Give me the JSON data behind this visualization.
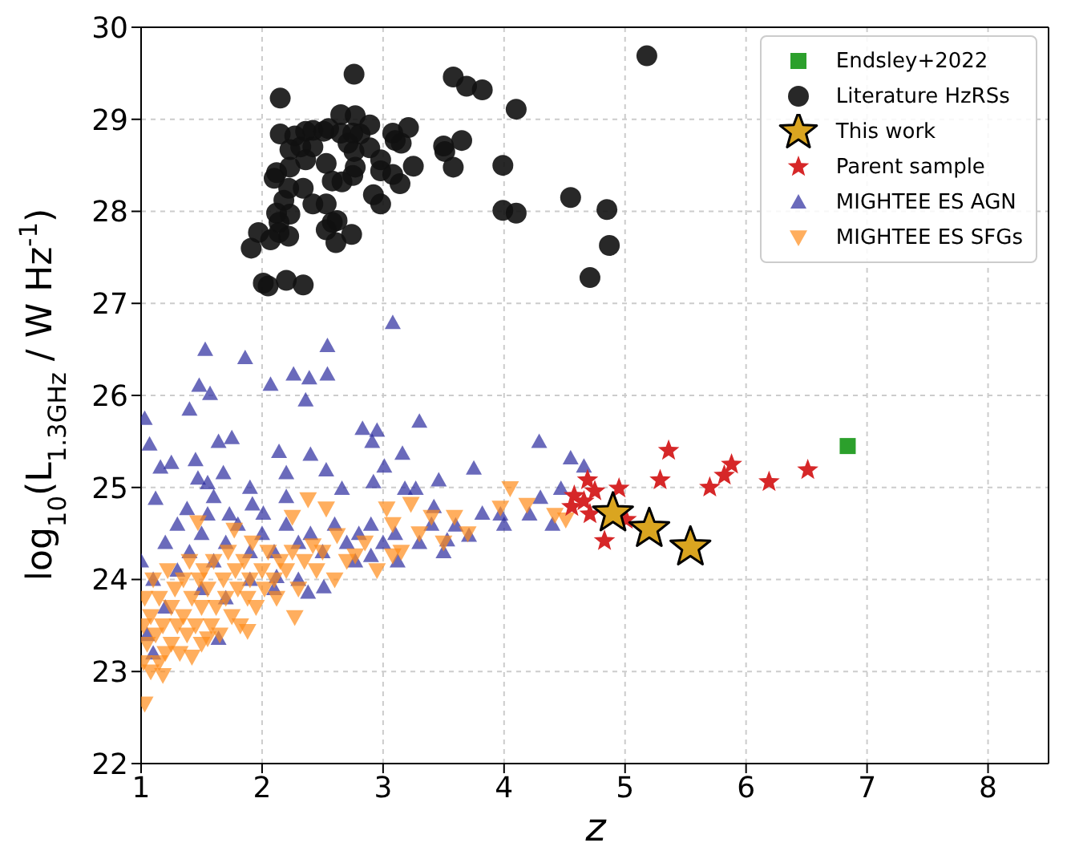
{
  "chart_data": {
    "type": "scatter",
    "xlabel": "z",
    "ylabel": "log$_{10}$(L$_{1.3GHz}$ / W Hz$^{-1}$)",
    "xlim": [
      1,
      8.5
    ],
    "xticks": [
      1,
      2,
      3,
      4,
      5,
      6,
      7,
      8
    ],
    "ylim": [
      22,
      30
    ],
    "yticks": [
      22,
      23,
      24,
      25,
      26,
      27,
      28,
      29,
      30
    ],
    "grid": true,
    "legend": "top right",
    "series": [
      {
        "name": "Endsley+2022",
        "color": "#2ca02c",
        "marker": "square",
        "x": [
          6.84
        ],
        "values": [
          25.45
        ]
      },
      {
        "name": "Literature HzRSs",
        "color": "#111111",
        "marker": "circle",
        "x": [
          2.76,
          2.15,
          5.18,
          3.58,
          3.69,
          3.82,
          4.1,
          2.65,
          2.77,
          2.15,
          2.27,
          2.36,
          2.42,
          2.51,
          2.55,
          2.65,
          2.75,
          2.81,
          2.89,
          3.08,
          3.21,
          3.1,
          3.15,
          2.23,
          2.32,
          2.42,
          2.36,
          2.71,
          2.76,
          2.89,
          2.53,
          2.23,
          2.12,
          2.1,
          2.77,
          2.75,
          2.66,
          2.58,
          2.98,
          2.98,
          3.08,
          3.14,
          3.25,
          3.5,
          3.51,
          3.65,
          3.58,
          3.99,
          2.22,
          2.34,
          2.18,
          2.42,
          2.53,
          2.92,
          2.98,
          2.12,
          2.23,
          2.14,
          2.62,
          2.58,
          2.53,
          2.14,
          2.22,
          2.07,
          1.97,
          1.91,
          2.74,
          2.61,
          3.99,
          4.1,
          4.55,
          4.85,
          4.87,
          4.71,
          2.01,
          2.05,
          2.2,
          2.34
        ],
        "values": [
          29.49,
          29.23,
          29.69,
          29.46,
          29.36,
          29.32,
          29.11,
          29.05,
          29.04,
          28.84,
          28.82,
          28.87,
          28.88,
          28.87,
          28.9,
          28.85,
          28.85,
          28.84,
          28.94,
          28.85,
          28.91,
          28.77,
          28.74,
          28.67,
          28.7,
          28.7,
          28.56,
          28.74,
          28.65,
          28.69,
          28.52,
          28.48,
          28.42,
          28.36,
          28.48,
          28.39,
          28.32,
          28.33,
          28.56,
          28.44,
          28.4,
          28.3,
          28.49,
          28.71,
          28.65,
          28.77,
          28.48,
          28.5,
          28.25,
          28.25,
          28.12,
          28.08,
          28.08,
          28.18,
          28.08,
          27.98,
          27.97,
          27.88,
          27.9,
          27.88,
          27.8,
          27.77,
          27.73,
          27.69,
          27.77,
          27.6,
          27.75,
          27.66,
          28.01,
          27.98,
          28.15,
          28.02,
          27.63,
          27.28,
          27.22,
          27.19,
          27.25,
          27.2
        ]
      },
      {
        "name": "This work",
        "color": "#daa520",
        "marker": "star",
        "x": [
          4.9,
          5.2,
          5.54
        ],
        "values": [
          24.72,
          24.55,
          24.35
        ]
      },
      {
        "name": "Parent sample",
        "color": "#d62728",
        "marker": "star",
        "x": [
          5.36,
          5.29,
          5.88,
          5.82,
          5.7,
          6.19,
          6.51,
          4.69,
          4.75,
          4.95,
          4.58,
          4.56,
          4.71,
          5.01,
          4.83,
          4.66
        ],
        "values": [
          25.4,
          25.08,
          25.25,
          25.13,
          25.0,
          25.06,
          25.19,
          25.08,
          24.96,
          24.99,
          24.91,
          24.79,
          24.71,
          24.65,
          24.42,
          24.85
        ]
      },
      {
        "name": "MIGHTEE ES AGN",
        "color": "#2b2b9e",
        "marker": "triangle",
        "x": [
          3.08,
          1.53,
          1.86,
          2.54,
          2.54,
          2.26,
          2.39,
          2.07,
          1.48,
          1.57,
          2.36,
          1.4,
          2.83,
          2.95,
          2.91,
          3.3,
          3.16,
          4.29,
          4.55,
          4.66,
          4.47,
          4.3,
          4.21,
          3.82,
          3.97,
          3.75,
          3.71,
          3.6,
          3.46,
          3.01,
          2.4,
          2.14,
          1.75,
          1.64,
          1.07,
          1.16,
          1.25,
          1.47,
          1.68,
          2.01,
          2.2,
          2.53,
          2.66,
          2.92,
          3.18,
          3.27,
          3.42,
          3.53,
          3.12,
          2.9,
          2.77,
          2.51,
          2.38,
          2.12,
          1.92,
          1.73,
          1.55,
          1.38,
          1.12,
          1.64,
          1.03,
          1.2,
          1.3,
          1.4,
          1.5,
          1.6,
          1.7,
          1.8,
          1.9,
          2.0,
          2.1,
          2.2,
          2.3,
          2.4,
          2.5,
          2.6,
          2.7,
          2.8,
          2.9,
          3.0,
          3.1,
          3.3,
          3.4,
          3.5,
          1.1,
          1.2,
          1.3,
          1.5,
          1.7,
          1.9,
          2.1,
          2.3,
          1.6,
          1.9,
          2.2,
          1.45,
          1.55,
          1.0,
          1.05,
          1.1,
          4.0,
          4.4
        ],
        "values": [
          26.79,
          26.5,
          26.41,
          26.54,
          26.23,
          26.23,
          26.19,
          26.12,
          26.11,
          26.02,
          25.95,
          25.85,
          25.64,
          25.62,
          25.5,
          25.72,
          25.37,
          25.5,
          25.32,
          25.23,
          24.99,
          24.89,
          24.71,
          24.72,
          24.71,
          25.21,
          24.48,
          24.59,
          25.08,
          25.23,
          25.36,
          25.39,
          25.54,
          25.5,
          25.47,
          25.22,
          25.27,
          25.1,
          25.16,
          24.72,
          25.16,
          25.19,
          24.99,
          25.06,
          24.99,
          24.99,
          24.79,
          24.43,
          24.2,
          24.26,
          24.2,
          23.92,
          23.86,
          24.03,
          24.82,
          24.71,
          24.71,
          24.77,
          24.88,
          23.36,
          25.75,
          24.4,
          24.6,
          24.3,
          24.5,
          24.2,
          24.4,
          24.6,
          24.3,
          24.5,
          24.3,
          24.6,
          24.4,
          24.5,
          24.3,
          24.6,
          24.4,
          24.5,
          24.6,
          24.4,
          24.5,
          24.4,
          24.6,
          24.3,
          24.0,
          23.7,
          24.1,
          23.9,
          23.8,
          24.0,
          23.9,
          24.0,
          24.9,
          25.0,
          24.9,
          25.3,
          25.05,
          24.2,
          23.4,
          23.2,
          24.6,
          24.6
        ]
      },
      {
        "name": "MIGHTEE ES SFGs",
        "color": "#ff8c1a",
        "marker": "triangle_down",
        "x": [
          2.38,
          2.53,
          2.25,
          1.77,
          1.47,
          4.05,
          3.97,
          4.19,
          4.42,
          4.51,
          3.59,
          3.4,
          3.23,
          3.03,
          3.08,
          3.08,
          2.77,
          2.62,
          2.42,
          2.27,
          1.88,
          1.55,
          1.42,
          1.18,
          1.03,
          1.02,
          1.02,
          1.03,
          1.05,
          1.08,
          1.08,
          1.1,
          1.12,
          1.15,
          1.15,
          1.18,
          1.2,
          1.22,
          1.25,
          1.25,
          1.28,
          1.3,
          1.32,
          1.35,
          1.35,
          1.38,
          1.4,
          1.42,
          1.45,
          1.48,
          1.5,
          1.5,
          1.52,
          1.55,
          1.58,
          1.6,
          1.62,
          1.65,
          1.68,
          1.7,
          1.72,
          1.75,
          1.78,
          1.8,
          1.82,
          1.85,
          1.88,
          1.9,
          1.92,
          1.95,
          2.0,
          2.02,
          2.05,
          2.1,
          2.12,
          2.15,
          2.2,
          2.25,
          2.3,
          2.35,
          2.45,
          2.5,
          2.6,
          2.7,
          2.85,
          2.95,
          3.15,
          3.3,
          3.5,
          3.7
        ],
        "values": [
          24.87,
          24.77,
          24.68,
          24.54,
          24.62,
          24.99,
          24.78,
          24.81,
          24.7,
          24.65,
          24.68,
          24.68,
          24.82,
          24.77,
          24.6,
          24.26,
          24.26,
          24.48,
          24.37,
          23.59,
          23.44,
          23.36,
          23.16,
          22.96,
          22.65,
          23.1,
          23.5,
          23.8,
          23.3,
          23.0,
          23.6,
          24.0,
          23.4,
          23.1,
          23.8,
          23.5,
          23.2,
          24.1,
          23.7,
          23.3,
          23.9,
          23.5,
          23.2,
          24.0,
          23.6,
          23.4,
          24.2,
          23.8,
          23.5,
          24.0,
          23.3,
          23.7,
          24.1,
          23.9,
          23.5,
          24.2,
          23.7,
          23.4,
          24.0,
          23.8,
          24.3,
          23.6,
          24.1,
          23.9,
          23.5,
          24.2,
          23.8,
          24.0,
          24.4,
          23.7,
          24.1,
          23.9,
          24.3,
          24.0,
          23.8,
          24.2,
          24.1,
          24.3,
          23.9,
          24.2,
          24.1,
          24.3,
          24.0,
          24.2,
          24.4,
          24.1,
          24.3,
          24.5,
          24.4,
          24.5
        ]
      }
    ]
  }
}
